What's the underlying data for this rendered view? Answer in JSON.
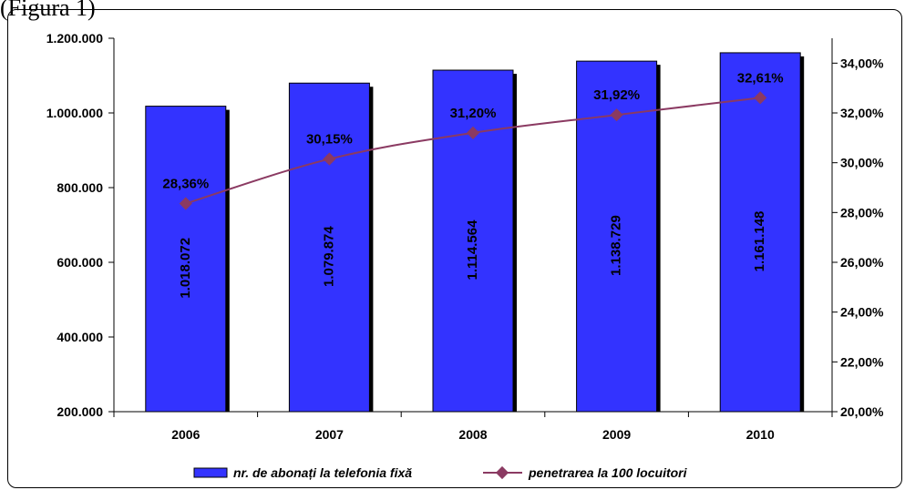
{
  "caption": "(Figura 1)",
  "legend": {
    "bars": "nr. de abonați la telefonia fixă",
    "line": "penetrarea la 100 locuitori"
  },
  "colors": {
    "bar": "#3333ff",
    "bar_shadow": "#000000",
    "line": "#8b3a62"
  },
  "chart_data": {
    "type": "bar",
    "categories": [
      "2006",
      "2007",
      "2008",
      "2009",
      "2010"
    ],
    "series": [
      {
        "name": "nr. de abonați la telefonia fixă",
        "type": "bar",
        "axis": "left",
        "values": [
          1018072,
          1079874,
          1114564,
          1138729,
          1161148
        ],
        "labels": [
          "1.018.072",
          "1.079.874",
          "1.114.564",
          "1.138.729",
          "1.161.148"
        ]
      },
      {
        "name": "penetrarea la 100 locuitori",
        "type": "line",
        "axis": "right",
        "values": [
          28.36,
          30.15,
          31.2,
          31.92,
          32.61
        ],
        "labels": [
          "28,36%",
          "30,15%",
          "31,20%",
          "31,92%",
          "32,61%"
        ]
      }
    ],
    "y_left": {
      "lim": [
        200000,
        1200000
      ],
      "ticks": [
        "200.000",
        "400.000",
        "600.000",
        "800.000",
        "1.000.000",
        "1.200.000"
      ],
      "tick_values": [
        200000,
        400000,
        600000,
        800000,
        1000000,
        1200000
      ]
    },
    "y_right": {
      "lim": [
        20,
        35
      ],
      "ticks": [
        "20,00%",
        "22,00%",
        "24,00%",
        "26,00%",
        "28,00%",
        "30,00%",
        "32,00%",
        "34,00%"
      ],
      "tick_values": [
        20,
        22,
        24,
        26,
        28,
        30,
        32,
        34
      ]
    },
    "grid": false,
    "legend_position": "bottom"
  }
}
